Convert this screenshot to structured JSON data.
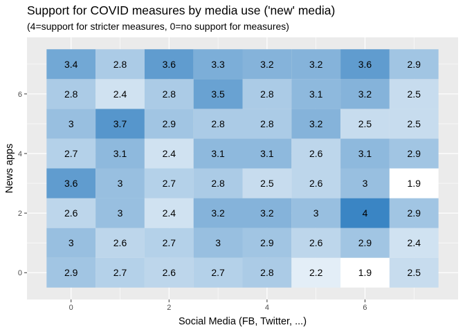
{
  "chart_data": {
    "type": "heatmap",
    "title": "Support for COVID measures by media use ('new' media)",
    "subtitle": "(4=support for stricter measures, 0=no support for measures)",
    "xlabel": "Social Media (FB, Twitter, ...)",
    "ylabel": "News apps",
    "x": [
      0,
      1,
      2,
      3,
      4,
      5,
      6,
      7
    ],
    "y": [
      0,
      1,
      2,
      3,
      4,
      5,
      6,
      7
    ],
    "xlim": [
      -0.5,
      7.5
    ],
    "ylim": [
      -0.5,
      7.5
    ],
    "x_ticks": [
      0,
      2,
      4,
      6
    ],
    "y_ticks": [
      0,
      2,
      4,
      6
    ],
    "x_tick_labels": [
      "0",
      "2",
      "4",
      "6"
    ],
    "y_tick_labels": [
      "0",
      "2",
      "4",
      "6"
    ],
    "values": [
      [
        2.9,
        2.7,
        2.6,
        2.7,
        2.8,
        2.2,
        1.9,
        2.5
      ],
      [
        3,
        2.6,
        2.7,
        3,
        2.9,
        2.6,
        2.9,
        2.4
      ],
      [
        2.6,
        3,
        2.4,
        3.2,
        3.2,
        3,
        4,
        2.9
      ],
      [
        3.6,
        3,
        2.7,
        2.8,
        2.5,
        2.6,
        3,
        1.9
      ],
      [
        2.7,
        3.1,
        2.4,
        3.1,
        3.1,
        2.6,
        3.1,
        2.9
      ],
      [
        3,
        3.7,
        2.9,
        2.8,
        2.8,
        3.2,
        2.5,
        2.5
      ],
      [
        2.8,
        2.4,
        2.8,
        3.5,
        2.8,
        3.1,
        3.2,
        2.5
      ],
      [
        3.4,
        2.8,
        3.6,
        3.3,
        3.2,
        3.2,
        3.6,
        2.9
      ]
    ],
    "color_low": "#ffffff",
    "color_high": "#3a85c4",
    "panel_background": "#ebebeb",
    "gridline_color": "#ffffff",
    "grid": true,
    "legend": "none"
  }
}
